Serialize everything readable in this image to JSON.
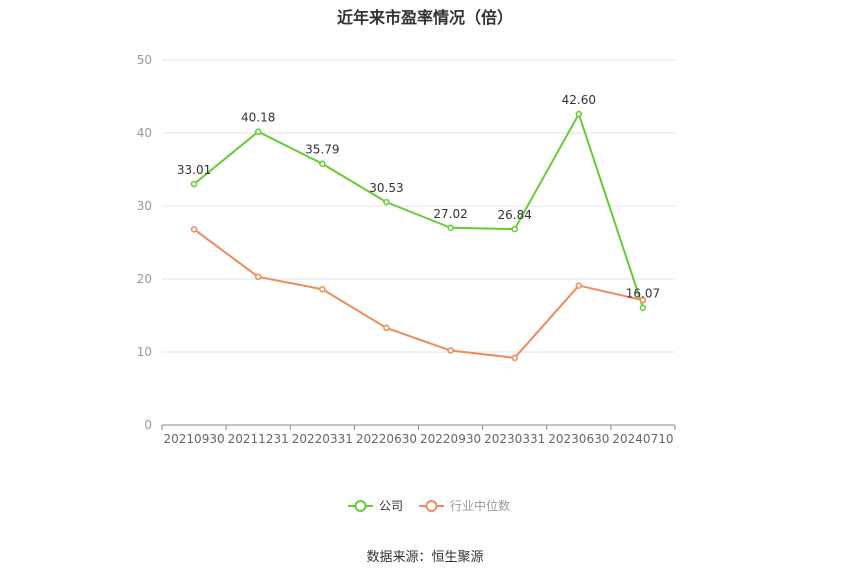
{
  "chart_data": {
    "type": "line",
    "title": "近年来市盈率情况（倍）",
    "categories": [
      "20210930",
      "20211231",
      "20220331",
      "20220630",
      "20220930",
      "20230331",
      "20230630",
      "20240710"
    ],
    "series": [
      {
        "name": "公司",
        "values": [
          33.01,
          40.18,
          35.79,
          30.53,
          27.02,
          26.84,
          42.6,
          16.07
        ],
        "color": "#66cc33",
        "labels_shown": true
      },
      {
        "name": "行业中位数",
        "values": [
          26.8,
          20.3,
          18.6,
          13.3,
          10.2,
          9.2,
          19.1,
          17.1
        ],
        "color": "#f08a5d",
        "labels_shown": false
      }
    ],
    "ylim": [
      0,
      50
    ],
    "yticks": [
      0,
      10,
      20,
      30,
      40,
      50
    ],
    "grid": true,
    "legend_position": "bottom-center",
    "source_label": "数据来源：恒生聚源",
    "data_labels": [
      "33.01",
      "40.18",
      "35.79",
      "30.53",
      "27.02",
      "26.84",
      "42.60",
      "16.07"
    ]
  }
}
